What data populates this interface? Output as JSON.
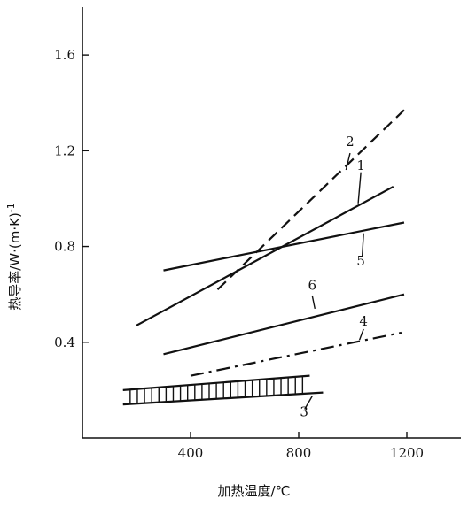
{
  "chart_data": {
    "type": "line",
    "xlabel": "加热温度/℃",
    "ylabel": "热导率/W·(m·K)",
    "ylabel_superscript": "-1",
    "xlim": [
      0,
      1400
    ],
    "ylim": [
      0,
      1.8
    ],
    "x_ticks": [
      400,
      800,
      1200
    ],
    "x_tick_labels": [
      "400",
      "800",
      "1200"
    ],
    "y_ticks": [
      0.4,
      0.8,
      1.2,
      1.6
    ],
    "y_tick_labels": [
      "0.4",
      "0.8",
      "1.2",
      "1.6"
    ],
    "grid": false,
    "series": [
      {
        "name": "1",
        "line_style": "solid",
        "x": [
          200,
          1150
        ],
        "y": [
          0.47,
          1.05
        ],
        "label_at": [
          1030,
          1.12
        ]
      },
      {
        "name": "2",
        "line_style": "dashed",
        "x": [
          500,
          1190
        ],
        "y": [
          0.62,
          1.37
        ],
        "label_at": [
          990,
          1.22
        ]
      },
      {
        "name": "3",
        "line_style": "hatched_band",
        "x": [
          150,
          890
        ],
        "y_lower": [
          0.14,
          0.19
        ],
        "y_upper": [
          0.2,
          0.26
        ],
        "label_at": [
          820,
          0.09
        ]
      },
      {
        "name": "4",
        "line_style": "dash-dot",
        "x": [
          400,
          1180
        ],
        "y": [
          0.26,
          0.44
        ],
        "label_at": [
          1040,
          0.47
        ]
      },
      {
        "name": "5",
        "line_style": "solid",
        "x": [
          300,
          1190
        ],
        "y": [
          0.7,
          0.9
        ],
        "label_at": [
          1030,
          0.72
        ]
      },
      {
        "name": "6",
        "line_style": "solid",
        "x": [
          300,
          1190
        ],
        "y": [
          0.35,
          0.6
        ],
        "label_at": [
          850,
          0.62
        ]
      }
    ],
    "series_color": "#111111"
  }
}
